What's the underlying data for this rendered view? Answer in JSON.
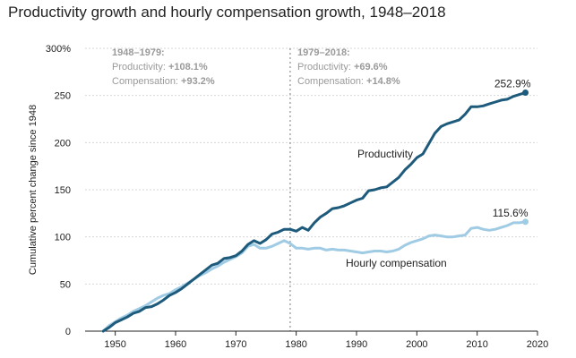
{
  "title": "Productivity growth and hourly compensation growth, 1948–2018",
  "colors": {
    "productivity": "#1d5a7b",
    "compensation": "#9fcbe4",
    "grid": "#d6d6d6",
    "annotation": "#9a9a9a",
    "divider": "#777777"
  },
  "annotations": [
    {
      "heading": "1948–1979:",
      "lines": [
        {
          "label": "Productivity: ",
          "value": "+108.1%"
        },
        {
          "label": "Compensation: ",
          "value": "+93.2%"
        }
      ]
    },
    {
      "heading": "1979–2018:",
      "lines": [
        {
          "label": "Productivity: ",
          "value": "+69.6%"
        },
        {
          "label": "Compensation: ",
          "value": "+14.8%"
        }
      ]
    }
  ],
  "chart_data": {
    "type": "line",
    "title": "Productivity growth and hourly compensation growth, 1948–2018",
    "xlabel": "",
    "ylabel": "Cumulative percent change since 1948",
    "xlim": [
      1945,
      2020
    ],
    "ylim": [
      0,
      300
    ],
    "xticks": [
      1950,
      1960,
      1970,
      1980,
      1990,
      2000,
      2010,
      2020
    ],
    "yticks": [
      0,
      50,
      100,
      150,
      200,
      250,
      300
    ],
    "ytick_labels": [
      "0",
      "50",
      "100",
      "150",
      "200",
      "250",
      "300%"
    ],
    "grid": "horizontal",
    "divider_x": 1979,
    "end_labels": {
      "productivity": "252.9%",
      "compensation": "115.6%"
    },
    "series": [
      {
        "name": "Productivity",
        "key": "productivity",
        "x": [
          1948,
          1949,
          1950,
          1951,
          1952,
          1953,
          1954,
          1955,
          1956,
          1957,
          1958,
          1959,
          1960,
          1961,
          1962,
          1963,
          1964,
          1965,
          1966,
          1967,
          1968,
          1969,
          1970,
          1971,
          1972,
          1973,
          1974,
          1975,
          1976,
          1977,
          1978,
          1979,
          1980,
          1981,
          1982,
          1983,
          1984,
          1985,
          1986,
          1987,
          1988,
          1989,
          1990,
          1991,
          1992,
          1993,
          1994,
          1995,
          1996,
          1997,
          1998,
          1999,
          2000,
          2001,
          2002,
          2003,
          2004,
          2005,
          2006,
          2007,
          2008,
          2009,
          2010,
          2011,
          2012,
          2013,
          2014,
          2015,
          2016,
          2017,
          2018
        ],
        "values": [
          0,
          4,
          9,
          12,
          15,
          19,
          21,
          25,
          26,
          29,
          33,
          38,
          41,
          45,
          50,
          55,
          60,
          65,
          70,
          72,
          77,
          78,
          80,
          85,
          92,
          96,
          93,
          97,
          103,
          105,
          108,
          108,
          106,
          110,
          107,
          115,
          121,
          125,
          130,
          131,
          133,
          136,
          139,
          141,
          149,
          150,
          152,
          153,
          158,
          163,
          171,
          177,
          184,
          188,
          199,
          210,
          217,
          220,
          222,
          224,
          230,
          238,
          238,
          239,
          241,
          243,
          245,
          246,
          249,
          251,
          253
        ]
      },
      {
        "name": "Hourly compensation",
        "key": "compensation",
        "x": [
          1948,
          1949,
          1950,
          1951,
          1952,
          1953,
          1954,
          1955,
          1956,
          1957,
          1958,
          1959,
          1960,
          1961,
          1962,
          1963,
          1964,
          1965,
          1966,
          1967,
          1968,
          1969,
          1970,
          1971,
          1972,
          1973,
          1974,
          1975,
          1976,
          1977,
          1978,
          1979,
          1980,
          1981,
          1982,
          1983,
          1984,
          1985,
          1986,
          1987,
          1988,
          1989,
          1990,
          1991,
          1992,
          1993,
          1994,
          1995,
          1996,
          1997,
          1998,
          1999,
          2000,
          2001,
          2002,
          2003,
          2004,
          2005,
          2006,
          2007,
          2008,
          2009,
          2010,
          2011,
          2012,
          2013,
          2014,
          2015,
          2016,
          2017,
          2018
        ],
        "values": [
          0,
          6,
          10,
          14,
          17,
          21,
          24,
          27,
          31,
          35,
          38,
          40,
          44,
          47,
          51,
          55,
          59,
          62,
          66,
          69,
          73,
          76,
          79,
          83,
          90,
          92,
          88,
          88,
          90,
          93,
          96,
          93,
          88,
          88,
          87,
          88,
          88,
          86,
          87,
          86,
          86,
          85,
          84,
          83,
          84,
          85,
          85,
          84,
          85,
          87,
          91,
          94,
          96,
          98,
          101,
          102,
          101,
          100,
          100,
          101,
          102,
          109,
          110,
          108,
          107,
          108,
          110,
          112,
          115,
          115,
          116
        ]
      }
    ]
  }
}
